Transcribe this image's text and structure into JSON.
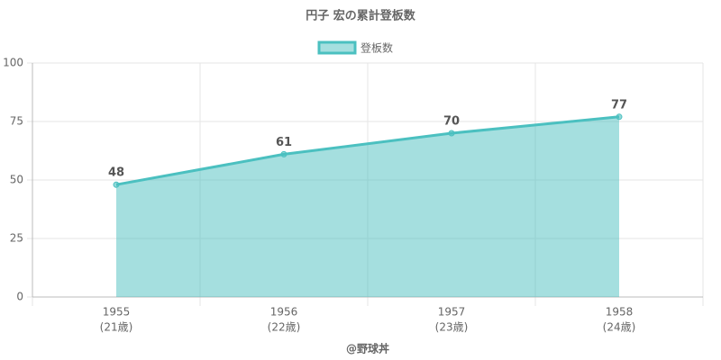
{
  "chart_data": {
    "type": "area",
    "title": "円子 宏の累計登板数",
    "categories": [
      "1955",
      "1956",
      "1957",
      "1958"
    ],
    "category_sublabels": [
      "(21歳)",
      "(22歳)",
      "(23歳)",
      "(24歳)"
    ],
    "x_label": "@野球丼",
    "series": [
      {
        "name": "登板数",
        "color": "#4bc0c0",
        "values": [
          48,
          61,
          70,
          77
        ]
      }
    ],
    "ylim": [
      0,
      100
    ],
    "yticks": [
      0,
      25,
      50,
      75,
      100
    ],
    "grid": true,
    "legend": "top"
  }
}
